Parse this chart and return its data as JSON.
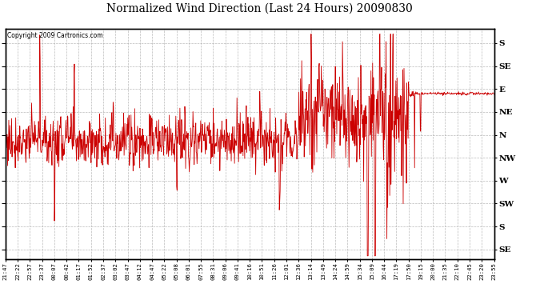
{
  "title": "Normalized Wind Direction (Last 24 Hours) 20090830",
  "copyright": "Copyright 2009 Cartronics.com",
  "line_color": "#cc0000",
  "background_color": "#ffffff",
  "plot_bg_color": "#ffffff",
  "grid_color": "#aaaaaa",
  "ytick_labels": [
    "S",
    "SE",
    "E",
    "NE",
    "N",
    "NW",
    "W",
    "SW",
    "S",
    "SE"
  ],
  "ytick_values": [
    1.0,
    0.875,
    0.75,
    0.625,
    0.5,
    0.375,
    0.25,
    0.125,
    0.0,
    -0.125
  ],
  "xtick_labels": [
    "21:47",
    "22:22",
    "22:57",
    "23:37",
    "00:07",
    "00:42",
    "01:17",
    "01:52",
    "02:37",
    "03:02",
    "03:47",
    "04:12",
    "04:47",
    "05:22",
    "05:08",
    "06:01",
    "07:55",
    "08:31",
    "09:06",
    "09:41",
    "10:16",
    "10:51",
    "11:26",
    "12:01",
    "12:36",
    "13:14",
    "13:49",
    "14:24",
    "14:59",
    "15:34",
    "15:09",
    "16:44",
    "17:19",
    "17:50",
    "19:15",
    "20:00",
    "21:35",
    "22:10",
    "22:45",
    "23:20",
    "23:55"
  ],
  "ylim": [
    -0.18,
    1.08
  ]
}
